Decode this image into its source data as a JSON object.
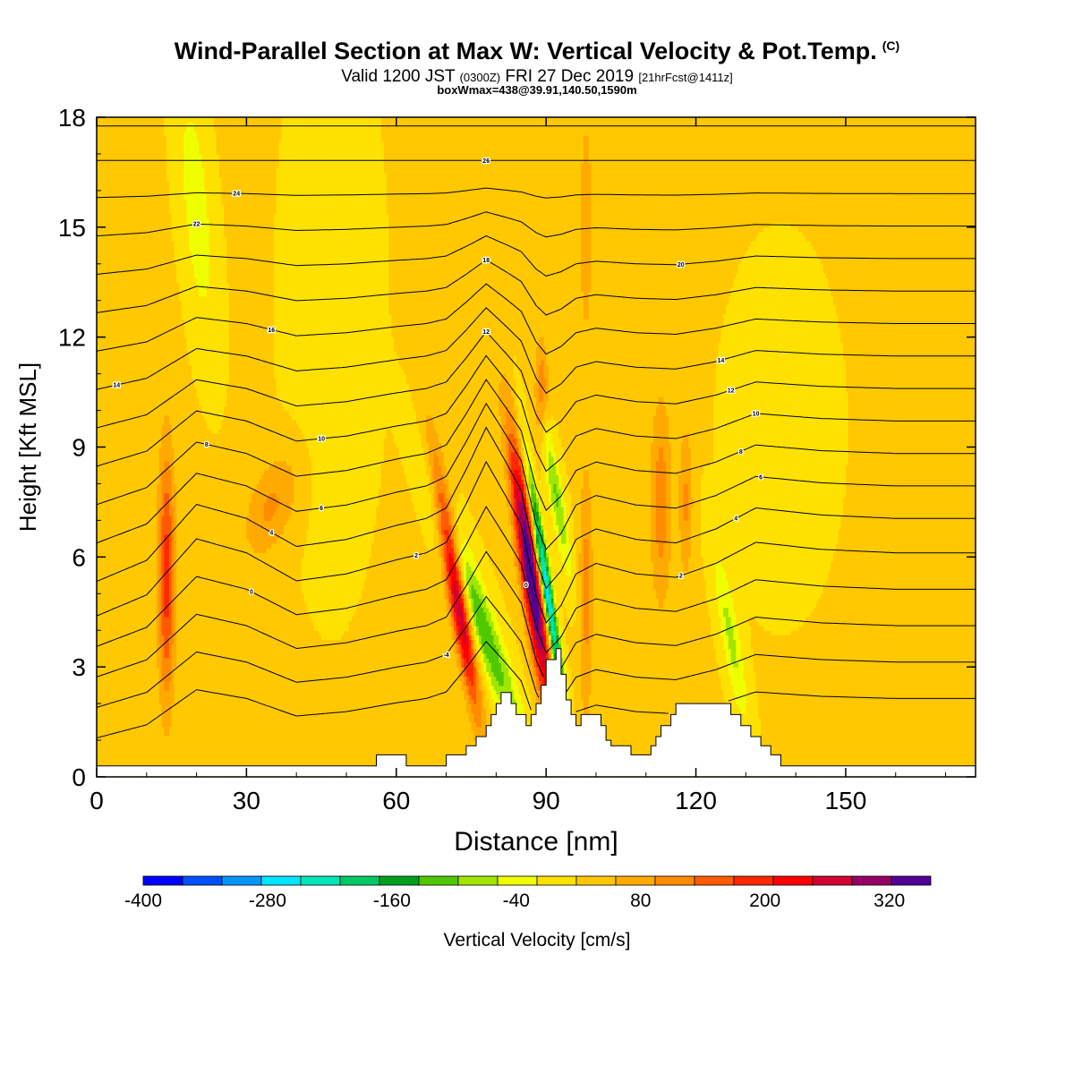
{
  "title": "Wind-Parallel Section at Max W: Vertical Velocity & Pot.Temp.",
  "title_mark": "(C)",
  "valid": {
    "prefix": "Valid 1200 JST",
    "utc": "(0300Z)",
    "date": "FRI 27 Dec 2019",
    "fcst": "[21hrFcst@1411z]"
  },
  "box_label": "boxWmax=438@39.91,140.50,1590m",
  "chart_data": {
    "type": "heatmap",
    "xlabel": "Distance [nm]",
    "ylabel": "Height [Kft MSL]",
    "xlim": [
      0,
      176
    ],
    "ylim": [
      0,
      18
    ],
    "x_ticks": [
      0,
      30,
      60,
      90,
      120,
      150
    ],
    "y_ticks": [
      0,
      3,
      6,
      9,
      12,
      15,
      18
    ],
    "colorbar": {
      "label": "Vertical Velocity [cm/s]",
      "tick_values": [
        -400,
        -280,
        -160,
        -40,
        80,
        200,
        320
      ],
      "bounds": [
        -400,
        360
      ],
      "colors": [
        "#0000ff",
        "#0050ff",
        "#0096ff",
        "#00e6ff",
        "#00e6b4",
        "#00c864",
        "#00a01e",
        "#50c800",
        "#a0e600",
        "#f0ff00",
        "#ffe100",
        "#ffc800",
        "#ffaa00",
        "#ff8c00",
        "#ff5a00",
        "#ff2800",
        "#ff0000",
        "#d20032",
        "#960064",
        "#500096"
      ]
    },
    "background_w": 20,
    "w_features": [
      {
        "x": 14,
        "z": 5.5,
        "sx": 1.2,
        "sz": 2.5,
        "w": 170
      },
      {
        "x": 20,
        "z": 15.5,
        "sx": 2.0,
        "sz": 2.3,
        "tilt": -0.6,
        "w": -70
      },
      {
        "x": 35,
        "z": 7.4,
        "sx": 3.5,
        "sz": 1.0,
        "tilt": 1.8,
        "w": 80
      },
      {
        "x": 47,
        "z": 13.0,
        "sx": 5.0,
        "sz": 4.0,
        "w": -30
      },
      {
        "x": 72,
        "z": 5.2,
        "sx": 1.3,
        "sz": 2.3,
        "tilt": -1.2,
        "w": 300
      },
      {
        "x": 77,
        "z": 4.2,
        "sx": 2.1,
        "sz": 2.4,
        "tilt": -2.5,
        "w": -150
      },
      {
        "x": 87,
        "z": 5.5,
        "sx": 1.4,
        "sz": 2.6,
        "tilt": -1.0,
        "w": 360
      },
      {
        "x": 90,
        "z": 5.2,
        "sx": 0.8,
        "sz": 2.3,
        "tilt": -1.1,
        "w": -330
      },
      {
        "x": 92,
        "z": 7.7,
        "sx": 1.0,
        "sz": 1.5,
        "tilt": -1.2,
        "w": -120
      },
      {
        "x": 89,
        "z": 10.5,
        "sx": 1.0,
        "sz": 1.0,
        "w": 110
      },
      {
        "x": 98,
        "z": 5.0,
        "sx": 1.0,
        "sz": 2.5,
        "w": 90
      },
      {
        "x": 113,
        "z": 7.5,
        "sx": 1.5,
        "sz": 2.0,
        "w": 100
      },
      {
        "x": 118,
        "z": 7.5,
        "sx": 1.0,
        "sz": 1.5,
        "w": 80
      },
      {
        "x": 127,
        "z": 3.8,
        "sx": 1.3,
        "sz": 1.6,
        "tilt": -1.2,
        "w": -90
      },
      {
        "x": 137,
        "z": 9.5,
        "sx": 6.0,
        "sz": 2.5,
        "w": -25
      },
      {
        "x": 98,
        "z": 15.0,
        "sx": 1.0,
        "sz": 2.5,
        "w": 60
      }
    ],
    "terrain": [
      [
        0,
        0.3
      ],
      [
        56,
        0.3
      ],
      [
        56,
        0.6
      ],
      [
        62,
        0.6
      ],
      [
        62,
        0.3
      ],
      [
        70,
        0.3
      ],
      [
        70,
        0.6
      ],
      [
        74,
        0.6
      ],
      [
        74,
        0.85
      ],
      [
        76,
        0.85
      ],
      [
        76,
        1.1
      ],
      [
        78,
        1.1
      ],
      [
        78,
        1.4
      ],
      [
        79,
        1.4
      ],
      [
        79,
        1.7
      ],
      [
        80,
        1.7
      ],
      [
        80,
        2.0
      ],
      [
        81,
        2.0
      ],
      [
        81,
        2.3
      ],
      [
        83,
        2.3
      ],
      [
        83,
        2.0
      ],
      [
        84,
        2.0
      ],
      [
        84,
        1.7
      ],
      [
        86,
        1.7
      ],
      [
        86,
        1.4
      ],
      [
        87,
        1.4
      ],
      [
        87,
        1.7
      ],
      [
        88,
        1.7
      ],
      [
        88,
        2.0
      ],
      [
        89,
        2.0
      ],
      [
        89,
        2.5
      ],
      [
        90,
        2.5
      ],
      [
        90,
        3.2
      ],
      [
        92,
        3.2
      ],
      [
        92,
        3.5
      ],
      [
        93,
        3.5
      ],
      [
        93,
        2.8
      ],
      [
        94,
        2.8
      ],
      [
        94,
        2.1
      ],
      [
        95,
        2.1
      ],
      [
        95,
        1.7
      ],
      [
        96,
        1.7
      ],
      [
        96,
        1.4
      ],
      [
        97,
        1.4
      ],
      [
        97,
        1.7
      ],
      [
        101,
        1.7
      ],
      [
        101,
        1.4
      ],
      [
        102,
        1.4
      ],
      [
        102,
        1.0
      ],
      [
        103,
        1.0
      ],
      [
        103,
        0.85
      ],
      [
        107,
        0.85
      ],
      [
        107,
        0.6
      ],
      [
        111,
        0.6
      ],
      [
        111,
        0.85
      ],
      [
        112,
        0.85
      ],
      [
        112,
        1.1
      ],
      [
        113,
        1.1
      ],
      [
        113,
        1.4
      ],
      [
        115,
        1.4
      ],
      [
        115,
        1.7
      ],
      [
        116,
        1.7
      ],
      [
        116,
        2.0
      ],
      [
        127,
        2.0
      ],
      [
        127,
        1.7
      ],
      [
        129,
        1.7
      ],
      [
        129,
        1.4
      ],
      [
        131,
        1.4
      ],
      [
        131,
        1.1
      ],
      [
        133,
        1.1
      ],
      [
        133,
        0.85
      ],
      [
        135,
        0.85
      ],
      [
        135,
        0.6
      ],
      [
        137,
        0.6
      ],
      [
        137,
        0.3
      ],
      [
        176,
        0.3
      ]
    ],
    "theta_levels": [
      -6,
      -4,
      -2,
      0,
      2,
      4,
      6,
      8,
      10,
      12,
      14,
      16,
      18,
      20,
      22,
      24,
      26,
      28,
      30
    ],
    "theta_labels": [
      {
        "level": -4,
        "x": 70,
        "text": "-4"
      },
      {
        "level": 0,
        "x": 31,
        "text": "0"
      },
      {
        "level": 0,
        "x": 86,
        "text": "0"
      },
      {
        "level": 2,
        "x": 64,
        "text": "2"
      },
      {
        "level": 2,
        "x": 117,
        "text": "2"
      },
      {
        "level": 4,
        "x": 35,
        "text": "4"
      },
      {
        "level": 4,
        "x": 128,
        "text": "4"
      },
      {
        "level": 6,
        "x": 45,
        "text": "6"
      },
      {
        "level": 6,
        "x": 133,
        "text": "6"
      },
      {
        "level": 8,
        "x": 22,
        "text": "8"
      },
      {
        "level": 8,
        "x": 129,
        "text": "8"
      },
      {
        "level": 10,
        "x": 45,
        "text": "10"
      },
      {
        "level": 10,
        "x": 132,
        "text": "10"
      },
      {
        "level": 12,
        "x": 78,
        "text": "12"
      },
      {
        "level": 12,
        "x": 127,
        "text": "12"
      },
      {
        "level": 14,
        "x": 4,
        "text": "14"
      },
      {
        "level": 14,
        "x": 125,
        "text": "14"
      },
      {
        "level": 16,
        "x": 35,
        "text": "16"
      },
      {
        "level": 18,
        "x": 78,
        "text": "18"
      },
      {
        "level": 20,
        "x": 117,
        "text": "20"
      },
      {
        "level": 22,
        "x": 20,
        "text": "22"
      },
      {
        "level": 24,
        "x": 28,
        "text": "24"
      },
      {
        "level": 26,
        "x": 78,
        "text": "26"
      }
    ]
  }
}
